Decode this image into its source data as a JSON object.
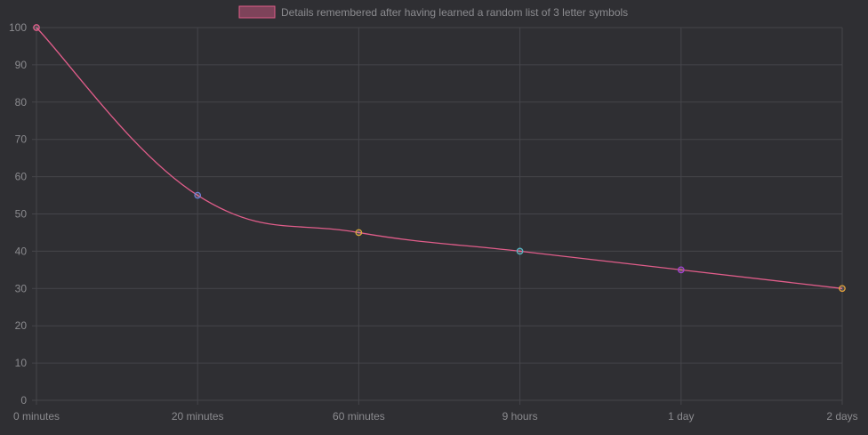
{
  "chart_data": {
    "type": "line",
    "categories": [
      "0 minutes",
      "20 minutes",
      "60 minutes",
      "9 hours",
      "1 day",
      "2 days"
    ],
    "series": [
      {
        "name": "Details remembered after having learned a random list of 3 letter symbols",
        "values": [
          100,
          55,
          45,
          40,
          35,
          30
        ],
        "color": "#e05d8a",
        "point_colors": [
          "#e05d8a",
          "#6c7fd6",
          "#d9a93a",
          "#57b4c2",
          "#a040d0",
          "#e6a33a"
        ]
      }
    ],
    "ylim": [
      0,
      100
    ],
    "yticks": [
      "0",
      "10",
      "20",
      "30",
      "40",
      "50",
      "60",
      "70",
      "80",
      "90",
      "100"
    ],
    "grid": true,
    "legend_position": "top",
    "colors": {
      "background": "#2f2f33",
      "grid": "#45454a",
      "text": "#8b8b8f"
    }
  }
}
